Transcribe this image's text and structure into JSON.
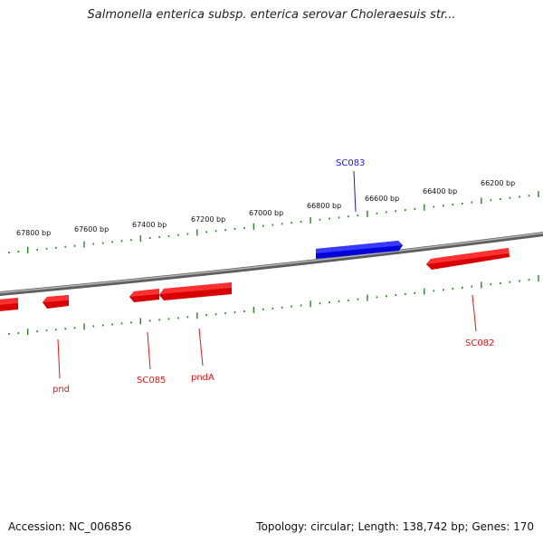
{
  "title": "Salmonella enterica subsp. enterica serovar Choleraesuis str...",
  "footer": {
    "accession": "Accession: NC_006856",
    "summary": "Topology: circular; Length: 138,742 bp; Genes: 170"
  },
  "colors": {
    "forward_gene": "#1a1aee",
    "reverse_gene": "#ee1111",
    "backbone": "#808080",
    "ticks": "#228822"
  },
  "scale_labels": [
    "67800 bp",
    "67600 bp",
    "67400 bp",
    "67200 bp",
    "67000 bp",
    "66800 bp",
    "66600 bp",
    "66400 bp",
    "66200 bp"
  ],
  "genes": [
    {
      "label": "SC083",
      "strand": "forward"
    },
    {
      "label": "SC082",
      "strand": "reverse"
    },
    {
      "label": "pndA",
      "strand": "reverse"
    },
    {
      "label": "SC085",
      "strand": "reverse"
    },
    {
      "label": "pnd",
      "strand": "reverse"
    },
    {
      "label": "",
      "strand": "reverse"
    }
  ]
}
